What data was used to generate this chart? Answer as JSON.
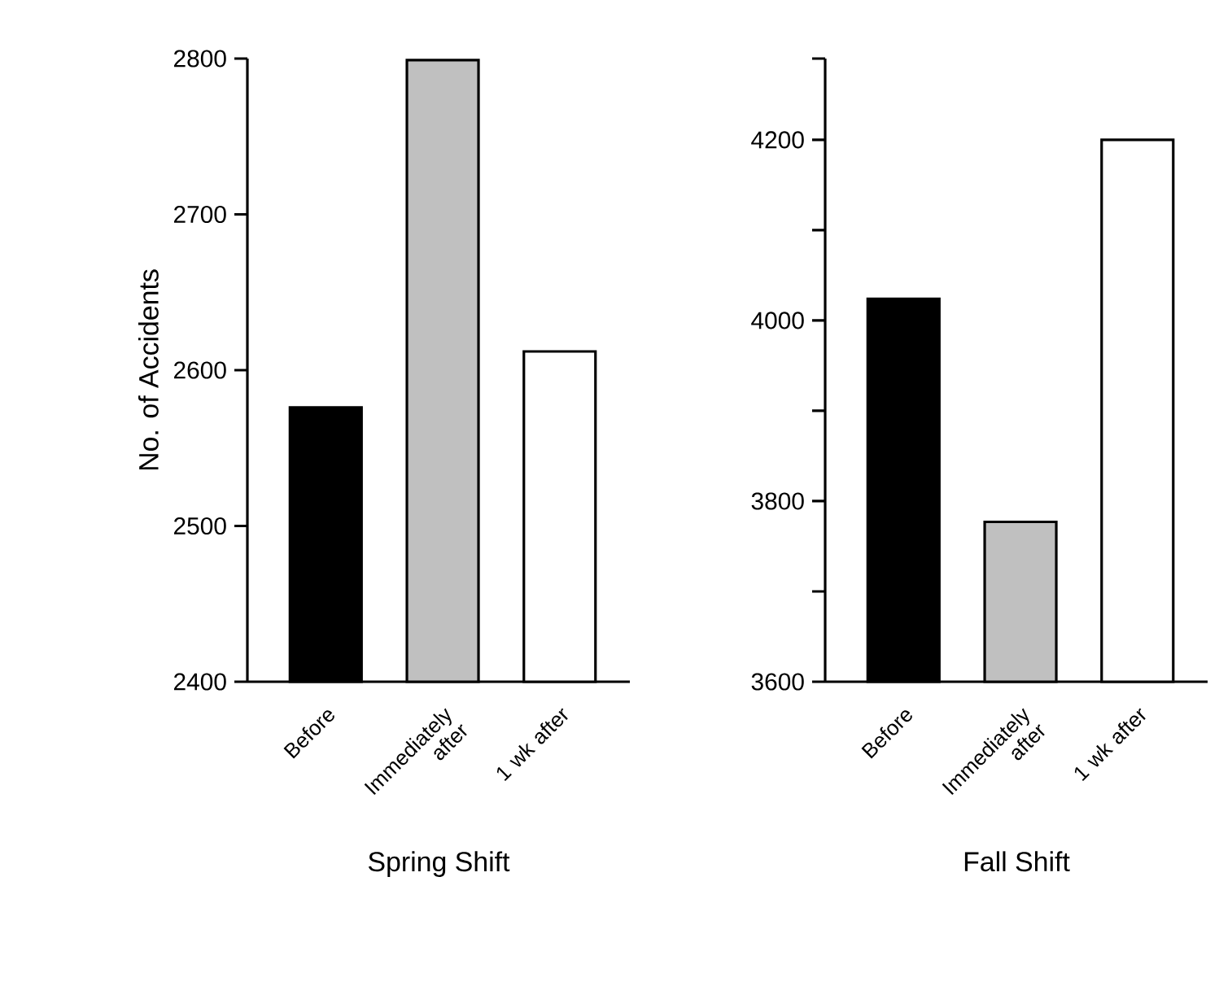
{
  "chart_data": [
    {
      "type": "bar",
      "xlabel": "Spring Shift",
      "ylabel": "No. of Accidents",
      "categories": [
        "Before",
        "Immediately after",
        "1 wk after"
      ],
      "values": [
        2576,
        2799,
        2612
      ],
      "colors": [
        "#000000",
        "#c0c0c0",
        "#ffffff"
      ],
      "ylim": [
        2400,
        2800
      ],
      "yticks": [
        2400,
        2500,
        2600,
        2700,
        2800
      ],
      "grid": false
    },
    {
      "type": "bar",
      "xlabel": "Fall Shift",
      "categories": [
        "Before",
        "Immediately after",
        "1 wk after"
      ],
      "values": [
        4024,
        3777,
        4200
      ],
      "colors": [
        "#000000",
        "#c0c0c0",
        "#ffffff"
      ],
      "ylim": [
        3600,
        4290
      ],
      "yticks": [
        3600,
        {
          "value": 3700,
          "label": null
        },
        3800,
        {
          "value": 3900,
          "label": null
        },
        4000,
        {
          "value": 4100,
          "label": null
        },
        4200,
        {
          "value": 4290,
          "label": null
        }
      ],
      "grid": false
    }
  ]
}
